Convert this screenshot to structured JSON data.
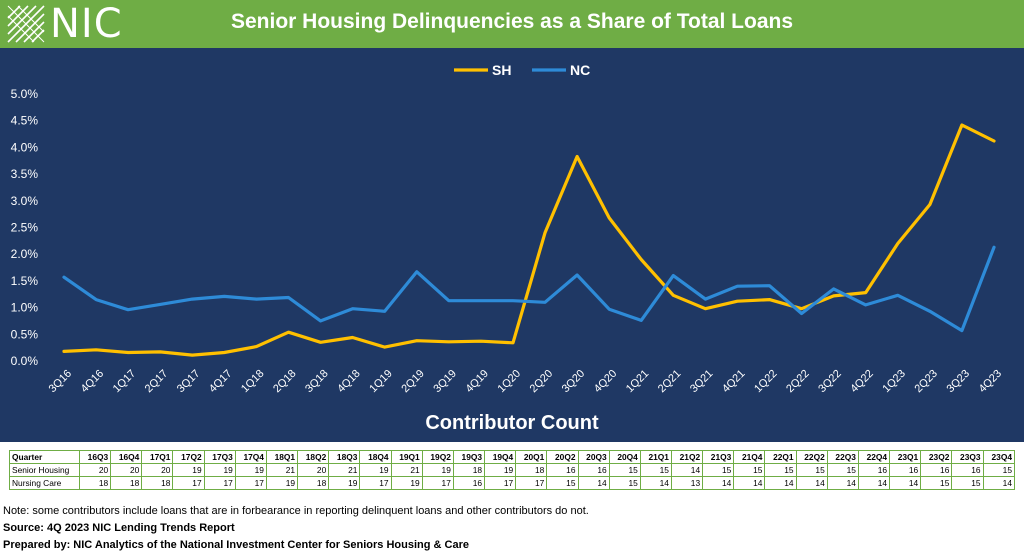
{
  "header": {
    "logo_text": "NIC",
    "title": "Senior Housing Delinquencies as a Share of Total Loans",
    "colors": {
      "green": "#6FAD45",
      "navy": "#1F3864"
    }
  },
  "chart_data": {
    "type": "line",
    "title": "Senior Housing Delinquencies as a Share of Total Loans",
    "categories": [
      "3Q16",
      "4Q16",
      "1Q17",
      "2Q17",
      "3Q17",
      "4Q17",
      "1Q18",
      "2Q18",
      "3Q18",
      "4Q18",
      "1Q19",
      "2Q19",
      "3Q19",
      "4Q19",
      "1Q20",
      "2Q20",
      "3Q20",
      "4Q20",
      "1Q21",
      "2Q21",
      "3Q21",
      "4Q21",
      "1Q22",
      "2Q22",
      "3Q22",
      "4Q22",
      "1Q23",
      "2Q23",
      "3Q23",
      "4Q23"
    ],
    "y_ticks": [
      "0.0%",
      "0.5%",
      "1.0%",
      "1.5%",
      "2.0%",
      "2.5%",
      "3.0%",
      "3.5%",
      "4.0%",
      "4.5%",
      "5.0%"
    ],
    "ylim": [
      0,
      5
    ],
    "grid": false,
    "legend_position": "top-center",
    "series": [
      {
        "name": "SH",
        "color": "#FFC000",
        "values": [
          0.18,
          0.21,
          0.16,
          0.17,
          0.11,
          0.16,
          0.27,
          0.54,
          0.35,
          0.44,
          0.26,
          0.38,
          0.36,
          0.37,
          0.34,
          2.4,
          3.83,
          2.68,
          1.9,
          1.23,
          0.98,
          1.12,
          1.15,
          0.98,
          1.22,
          1.28,
          2.2,
          2.93,
          4.42,
          4.12
        ]
      },
      {
        "name": "NC",
        "color": "#2E8BD8",
        "values": [
          1.57,
          1.15,
          0.96,
          1.06,
          1.16,
          1.21,
          1.16,
          1.19,
          0.75,
          0.98,
          0.93,
          1.67,
          1.13,
          1.13,
          1.13,
          1.1,
          1.61,
          0.97,
          0.76,
          1.6,
          1.16,
          1.4,
          1.41,
          0.89,
          1.35,
          1.05,
          1.23,
          0.93,
          0.57,
          2.13
        ]
      }
    ]
  },
  "contributor": {
    "title": "Contributor Count",
    "header_label": "Quarter",
    "quarters": [
      "16Q3",
      "16Q4",
      "17Q1",
      "17Q2",
      "17Q3",
      "17Q4",
      "18Q1",
      "18Q2",
      "18Q3",
      "18Q4",
      "19Q1",
      "19Q2",
      "19Q3",
      "19Q4",
      "20Q1",
      "20Q2",
      "20Q3",
      "20Q4",
      "21Q1",
      "21Q2",
      "21Q3",
      "21Q4",
      "22Q1",
      "22Q2",
      "22Q3",
      "22Q4",
      "23Q1",
      "23Q2",
      "23Q3",
      "23Q4"
    ],
    "rows": [
      {
        "label": "Senior Housing",
        "values": [
          "20",
          "20",
          "20",
          "19",
          "19",
          "19",
          "21",
          "20",
          "21",
          "19",
          "21",
          "19",
          "18",
          "19",
          "18",
          "16",
          "16",
          "15",
          "15",
          "14",
          "15",
          "15",
          "15",
          "15",
          "15",
          "16",
          "16",
          "16",
          "16",
          "15"
        ]
      },
      {
        "label": "Nursing Care",
        "values": [
          "18",
          "18",
          "18",
          "17",
          "17",
          "17",
          "19",
          "18",
          "19",
          "17",
          "19",
          "17",
          "16",
          "17",
          "17",
          "15",
          "14",
          "15",
          "14",
          "13",
          "14",
          "14",
          "14",
          "14",
          "14",
          "14",
          "14",
          "15",
          "15",
          "14"
        ]
      }
    ]
  },
  "notes": {
    "note": "Note: some contributors include loans that are in forbearance in reporting delinquent loans and other contributors do not.",
    "source": "Source: 4Q 2023 NIC Lending Trends Report",
    "prepared": "Prepared by: NIC Analytics of the National Investment Center for Seniors Housing & Care"
  }
}
